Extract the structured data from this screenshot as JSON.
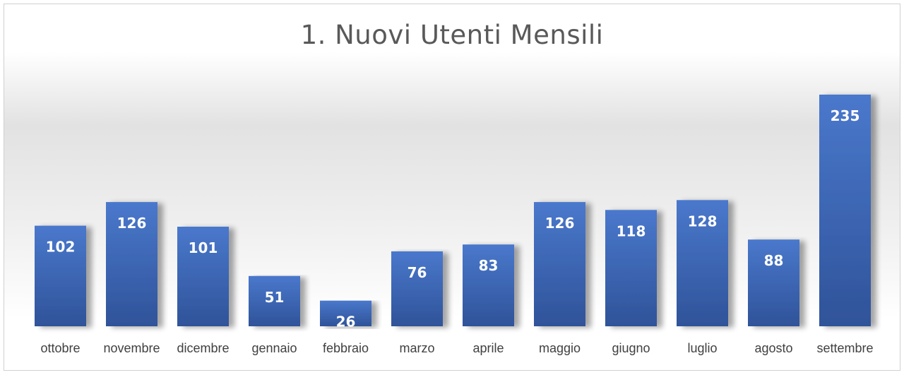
{
  "chart_data": {
    "type": "bar",
    "title": "1. Nuovi Utenti Mensili",
    "xlabel": "",
    "ylabel": "",
    "categories": [
      "ottobre",
      "novembre",
      "dicembre",
      "gennaio",
      "febbraio",
      "marzo",
      "aprile",
      "maggio",
      "giugno",
      "luglio",
      "agosto",
      "settembre"
    ],
    "values": [
      102,
      126,
      101,
      51,
      26,
      76,
      83,
      126,
      118,
      128,
      88,
      235
    ],
    "ylim": [
      0,
      240
    ],
    "grid": false,
    "legend": "none",
    "data_labels": true,
    "colors": {
      "bar_top": "#4a78cc",
      "bar_bottom": "#2f5399",
      "label_text": "#ffffff",
      "axis_text": "#404040",
      "title_text": "#595959"
    }
  }
}
